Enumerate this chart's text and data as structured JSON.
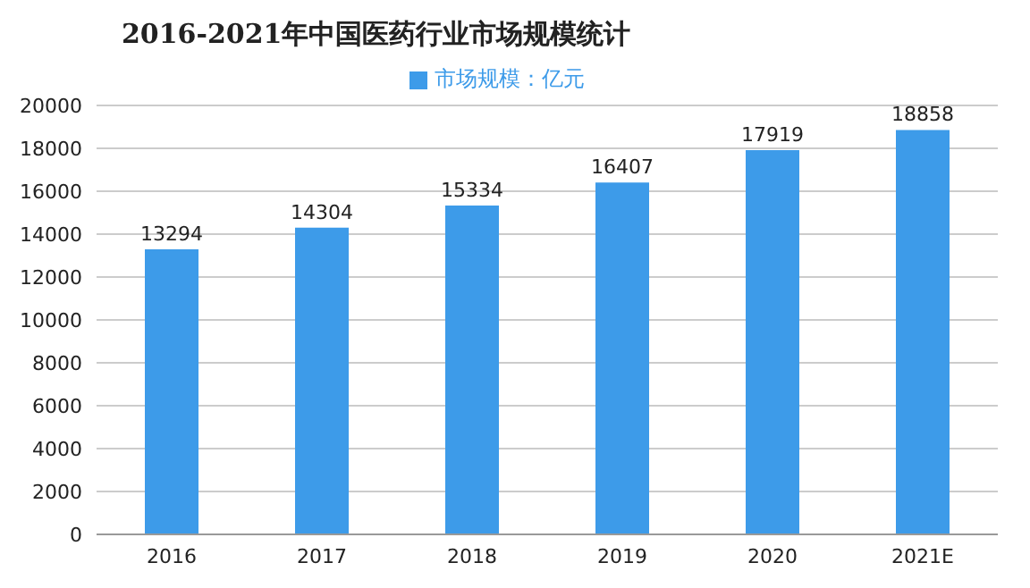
{
  "chart_data": {
    "type": "bar",
    "title": "2016-2021年中国医药行业市场规模统计",
    "categories": [
      "2016",
      "2017",
      "2018",
      "2019",
      "2020",
      "2021E"
    ],
    "series": [
      {
        "name": "市场规模：亿元",
        "color": "#3d9be9",
        "values": [
          13294,
          14304,
          15334,
          16407,
          17919,
          18858
        ]
      }
    ],
    "ylim": [
      0,
      20000
    ],
    "yticks": [
      0,
      2000,
      4000,
      6000,
      8000,
      10000,
      12000,
      14000,
      16000,
      18000,
      20000
    ],
    "grid": "y",
    "legend": "top",
    "data_labels": true
  }
}
